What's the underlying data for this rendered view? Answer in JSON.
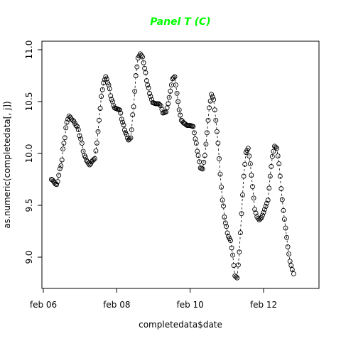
{
  "chart_data": {
    "type": "scatter",
    "title": "Panel T (C)",
    "title_color": "#00ff00",
    "xlabel": "completedata$date",
    "ylabel": "as.numeric(completedata[, j])",
    "marker": "open-circle",
    "connector": "dashed",
    "xlim": [
      0,
      7.6
    ],
    "ylim": [
      8.7,
      11.05
    ],
    "x_ticks": [
      {
        "value": 0,
        "label": "feb 06"
      },
      {
        "value": 2,
        "label": "feb 08"
      },
      {
        "value": 4,
        "label": "feb 10"
      },
      {
        "value": 6,
        "label": "feb 12"
      }
    ],
    "y_ticks": [
      9.0,
      9.5,
      10.0,
      10.5,
      11.0
    ],
    "y_tick_labels": [
      "9.0",
      "9.5",
      "10.0",
      "10.5",
      "11.0"
    ],
    "keypoints": [
      [
        0.22,
        9.75
      ],
      [
        0.36,
        9.7
      ],
      [
        0.48,
        9.88
      ],
      [
        0.56,
        10.1
      ],
      [
        0.64,
        10.3
      ],
      [
        0.7,
        10.36
      ],
      [
        0.8,
        10.32
      ],
      [
        0.92,
        10.26
      ],
      [
        1.02,
        10.14
      ],
      [
        1.12,
        9.98
      ],
      [
        1.2,
        9.92
      ],
      [
        1.26,
        9.89
      ],
      [
        1.34,
        9.93
      ],
      [
        1.4,
        9.95
      ],
      [
        1.46,
        10.1
      ],
      [
        1.52,
        10.32
      ],
      [
        1.58,
        10.55
      ],
      [
        1.64,
        10.68
      ],
      [
        1.7,
        10.74
      ],
      [
        1.78,
        10.66
      ],
      [
        1.86,
        10.52
      ],
      [
        1.94,
        10.44
      ],
      [
        2.0,
        10.43
      ],
      [
        2.08,
        10.42
      ],
      [
        2.16,
        10.3
      ],
      [
        2.24,
        10.2
      ],
      [
        2.32,
        10.13
      ],
      [
        2.38,
        10.15
      ],
      [
        2.46,
        10.45
      ],
      [
        2.52,
        10.75
      ],
      [
        2.58,
        10.92
      ],
      [
        2.64,
        10.96
      ],
      [
        2.7,
        10.93
      ],
      [
        2.76,
        10.82
      ],
      [
        2.84,
        10.66
      ],
      [
        2.92,
        10.55
      ],
      [
        2.98,
        10.49
      ],
      [
        3.06,
        10.48
      ],
      [
        3.14,
        10.48
      ],
      [
        3.2,
        10.46
      ],
      [
        3.26,
        10.39
      ],
      [
        3.34,
        10.4
      ],
      [
        3.4,
        10.48
      ],
      [
        3.46,
        10.6
      ],
      [
        3.52,
        10.72
      ],
      [
        3.58,
        10.74
      ],
      [
        3.64,
        10.58
      ],
      [
        3.7,
        10.42
      ],
      [
        3.76,
        10.32
      ],
      [
        3.84,
        10.29
      ],
      [
        3.92,
        10.27
      ],
      [
        4.0,
        10.27
      ],
      [
        4.08,
        10.26
      ],
      [
        4.14,
        10.14
      ],
      [
        4.22,
        9.98
      ],
      [
        4.28,
        9.86
      ],
      [
        4.34,
        9.85
      ],
      [
        4.4,
        9.98
      ],
      [
        4.46,
        10.2
      ],
      [
        4.52,
        10.44
      ],
      [
        4.58,
        10.57
      ],
      [
        4.64,
        10.52
      ],
      [
        4.7,
        10.32
      ],
      [
        4.76,
        10.1
      ],
      [
        4.82,
        9.8
      ],
      [
        4.88,
        9.55
      ],
      [
        4.96,
        9.33
      ],
      [
        5.04,
        9.2
      ],
      [
        5.1,
        9.16
      ],
      [
        5.16,
        9.02
      ],
      [
        5.22,
        8.82
      ],
      [
        5.28,
        8.8
      ],
      [
        5.34,
        9.05
      ],
      [
        5.4,
        9.42
      ],
      [
        5.46,
        9.78
      ],
      [
        5.52,
        10.01
      ],
      [
        5.58,
        10.05
      ],
      [
        5.64,
        9.9
      ],
      [
        5.7,
        9.68
      ],
      [
        5.76,
        9.46
      ],
      [
        5.82,
        9.39
      ],
      [
        5.88,
        9.36
      ],
      [
        5.94,
        9.38
      ],
      [
        6.0,
        9.43
      ],
      [
        6.06,
        9.49
      ],
      [
        6.12,
        9.55
      ],
      [
        6.18,
        9.78
      ],
      [
        6.24,
        9.97
      ],
      [
        6.3,
        10.07
      ],
      [
        6.36,
        10.05
      ],
      [
        6.42,
        9.9
      ],
      [
        6.48,
        9.66
      ],
      [
        6.54,
        9.45
      ],
      [
        6.6,
        9.28
      ],
      [
        6.66,
        9.1
      ],
      [
        6.72,
        8.96
      ],
      [
        6.78,
        8.88
      ],
      [
        6.82,
        8.84
      ]
    ]
  }
}
